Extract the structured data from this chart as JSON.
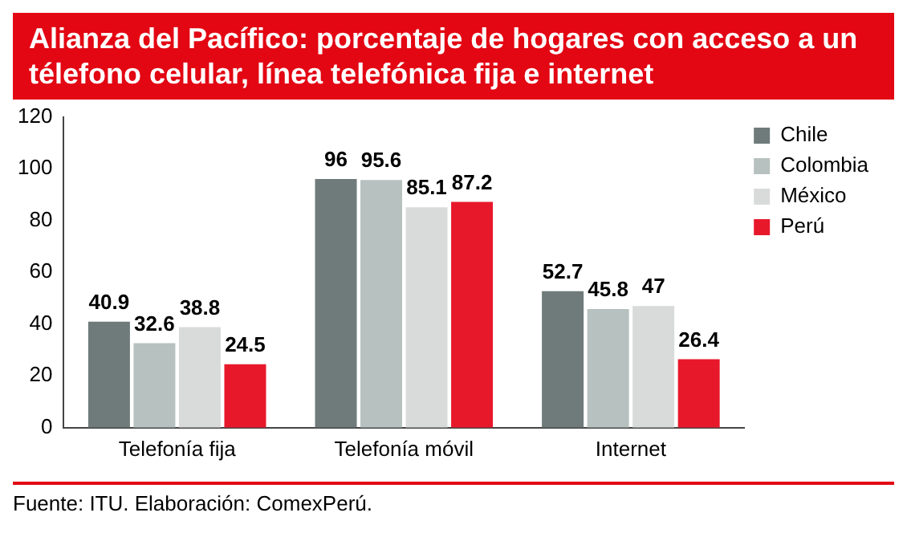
{
  "chart_data": {
    "type": "bar",
    "title": "Alianza del Pacífico: porcentaje de hogares con acceso a un télefono celular, línea telefónica fija e internet",
    "categories": [
      "Telefonía fija",
      "Telefonía móvil",
      "Internet"
    ],
    "series": [
      {
        "name": "Chile",
        "color": "#6f7a7a",
        "values": [
          40.9,
          96,
          52.7
        ]
      },
      {
        "name": "Colombia",
        "color": "#b7c1bf",
        "values": [
          32.6,
          95.6,
          45.8
        ]
      },
      {
        "name": "México",
        "color": "#d9dbdb",
        "values": [
          38.8,
          85.1,
          47
        ]
      },
      {
        "name": "Perú",
        "color": "#e8182b",
        "values": [
          24.5,
          87.2,
          26.4
        ]
      }
    ],
    "ylim": [
      0,
      120
    ],
    "yticks": [
      0,
      20,
      40,
      60,
      80,
      100,
      120
    ],
    "grid": false,
    "legend": "top right",
    "data_labels": true,
    "annotations": [
      "Fuente: ITU. Elaboración: ComexPerú."
    ]
  }
}
